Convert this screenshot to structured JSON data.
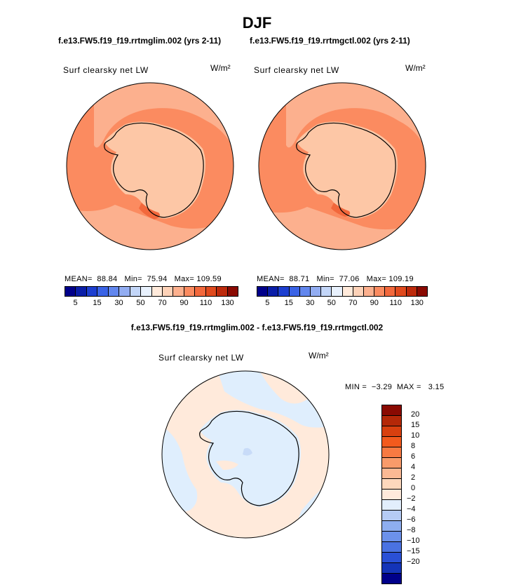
{
  "title": "DJF",
  "panels": [
    {
      "case_title": "f.e13.FW5.f19_f19.rrtmglim.002 (yrs 2-11)",
      "variable": "Surf clearsky net LW",
      "units": "W/m²",
      "stats": "MEAN=  88.84   Min=  75.94   Max= 109.59"
    },
    {
      "case_title": "f.e13.FW5.f19_f19.rrtmgctl.002 (yrs 2-11)",
      "variable": "Surf clearsky net LW",
      "units": "W/m²",
      "stats": "MEAN=  88.71   Min=  77.06   Max= 109.19"
    }
  ],
  "abs_colorbar": {
    "colors": [
      "#00008a",
      "#0a1ea8",
      "#1d3fd0",
      "#3a63e6",
      "#6287ee",
      "#92adf2",
      "#c3d6f8",
      "#e8f1fd",
      "#ffeadb",
      "#fdd2b8",
      "#fcb08e",
      "#fb8b60",
      "#f2683c",
      "#e04a1e",
      "#bd2a0c",
      "#8a0a02"
    ],
    "tick_labels": [
      "5",
      "15",
      "30",
      "50",
      "70",
      "90",
      "110",
      "130"
    ]
  },
  "diff": {
    "title": "f.e13.FW5.f19_f19.rrtmglim.002 - f.e13.FW5.f19_f19.rrtmgctl.002",
    "variable": "Surf clearsky net LW",
    "units": "W/m²",
    "stats": "MIN =  −3.29  MAX =   3.15",
    "colorbar": {
      "colors": [
        "#8a0a02",
        "#b42808",
        "#d8400f",
        "#f25a1d",
        "#f77a42",
        "#f99b6a",
        "#fbb994",
        "#fdd8bd",
        "#ffeadb",
        "#e2eefc",
        "#b5cbf5",
        "#8eaef0",
        "#6c91ea",
        "#4a72e2",
        "#2a50d6",
        "#1434b8",
        "#00008a"
      ],
      "tick_labels": [
        "20",
        "15",
        "10",
        "8",
        "6",
        "4",
        "2",
        "0",
        "−2",
        "−4",
        "−6",
        "−8",
        "−10",
        "−15",
        "−20"
      ]
    }
  },
  "map_colors": {
    "ocean_warm": "#fb8b60",
    "ocean_light": "#fcb08e",
    "ice_pale": "#fdc7a6",
    "ross_hot": "#f2683c",
    "diff_pos": "#ffeadb",
    "diff_neg": "#dfeefd",
    "diff_neg2": "#c8dbf8",
    "coast": "#000000"
  }
}
